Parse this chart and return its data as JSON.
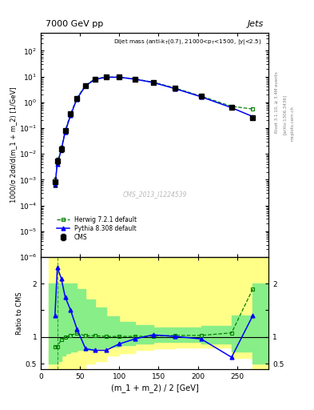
{
  "title_top": "7000 GeV pp",
  "title_right": "Jets",
  "plot_label": "Dijet mass (anti-k_{T}(0.7), 21000<p_{T}<1500, |y|<2.5)",
  "watermark": "CMS_2013_I1224539",
  "rivet_label": "Rivet 3.1.10, ≥ 3.4M events",
  "arxiv_label": "[arXiv:1306.3436]",
  "mcplots_label": "mcplots.cern.ch",
  "ylabel_main": "1000/σ 2dσ/d(m_1 + m_2) [1/GeV]",
  "ylabel_ratio": "Ratio to CMS",
  "xlabel": "(m_1 + m_2) / 2 [GeV]",
  "xlim": [
    10,
    290
  ],
  "ylim_main": [
    1e-06,
    500
  ],
  "ylim_ratio": [
    0.4,
    2.5
  ],
  "cms_x": [
    18,
    21,
    26,
    31,
    38,
    46,
    57,
    69,
    83,
    100,
    120,
    143,
    171,
    204,
    243,
    270
  ],
  "cms_y": [
    0.00085,
    0.0055,
    0.016,
    0.08,
    0.35,
    1.4,
    4.5,
    8.0,
    9.5,
    9.5,
    8.0,
    6.0,
    3.5,
    1.7,
    0.65,
    0.25
  ],
  "cms_yerr": [
    0.0003,
    0.0015,
    0.004,
    0.015,
    0.06,
    0.2,
    0.5,
    0.7,
    0.6,
    0.6,
    0.5,
    0.4,
    0.25,
    0.12,
    0.05,
    0.03
  ],
  "herwig_x": [
    18,
    21,
    26,
    31,
    38,
    46,
    57,
    69,
    83,
    100,
    120,
    143,
    171,
    204,
    243,
    270
  ],
  "herwig_y": [
    0.0006,
    0.0045,
    0.015,
    0.08,
    0.36,
    1.5,
    4.6,
    8.2,
    9.6,
    9.6,
    8.1,
    6.1,
    3.6,
    1.75,
    0.7,
    0.55
  ],
  "pythia_x": [
    18,
    21,
    26,
    31,
    38,
    46,
    57,
    69,
    83,
    100,
    120,
    143,
    171,
    204,
    243,
    270
  ],
  "pythia_y": [
    0.0006,
    0.004,
    0.014,
    0.07,
    0.32,
    1.35,
    4.4,
    7.8,
    9.4,
    9.4,
    7.9,
    5.9,
    3.4,
    1.65,
    0.62,
    0.28
  ],
  "herwig_ratio_x": [
    18,
    21,
    26,
    31,
    38,
    46,
    57,
    69,
    83,
    100,
    120,
    143,
    171,
    204,
    243,
    270
  ],
  "herwig_ratio": [
    0.82,
    0.82,
    0.95,
    1.0,
    1.03,
    1.07,
    1.02,
    1.025,
    1.01,
    1.01,
    1.0125,
    1.015,
    1.029,
    1.029,
    1.077,
    1.9
  ],
  "pythia_ratio_x": [
    18,
    21,
    26,
    31,
    38,
    46,
    57,
    69,
    83,
    100,
    120,
    143,
    171,
    204,
    243,
    270
  ],
  "pythia_ratio": [
    1.4,
    2.3,
    2.1,
    1.75,
    1.5,
    1.15,
    0.78,
    0.75,
    0.75,
    0.87,
    0.965,
    1.04,
    1.01,
    0.965,
    0.62,
    1.4
  ],
  "cms_band_x": [
    10,
    18,
    21,
    26,
    31,
    38,
    46,
    57,
    69,
    83,
    100,
    120,
    143,
    171,
    204,
    243,
    270,
    290
  ],
  "cms_band_yellow_lo": [
    0.4,
    0.4,
    0.4,
    0.4,
    0.4,
    0.4,
    0.4,
    0.5,
    0.55,
    0.65,
    0.7,
    0.75,
    0.78,
    0.8,
    0.8,
    0.6,
    0.4,
    0.4
  ],
  "cms_band_yellow_hi": [
    2.5,
    2.5,
    2.5,
    2.5,
    2.5,
    2.5,
    2.5,
    2.5,
    2.5,
    2.5,
    2.5,
    2.5,
    2.5,
    2.5,
    2.5,
    2.5,
    2.5,
    2.5
  ],
  "cms_band_green_lo": [
    0.5,
    0.5,
    0.55,
    0.65,
    0.7,
    0.72,
    0.75,
    0.75,
    0.78,
    0.82,
    0.85,
    0.88,
    0.9,
    0.9,
    0.88,
    0.72,
    0.5,
    0.5
  ],
  "cms_band_green_hi": [
    2.0,
    2.0,
    2.0,
    2.0,
    2.0,
    2.0,
    1.9,
    1.7,
    1.55,
    1.38,
    1.28,
    1.22,
    1.18,
    1.18,
    1.2,
    1.4,
    2.0,
    2.0
  ],
  "vline_x": 21,
  "cms_color": "black",
  "herwig_color": "#008000",
  "pythia_color": "blue",
  "yellow_color": "#FFFF88",
  "green_color": "#88EE88",
  "legend_cms": "CMS",
  "legend_herwig": "Herwig 7.2.1 default",
  "legend_pythia": "Pythia 8.308 default"
}
